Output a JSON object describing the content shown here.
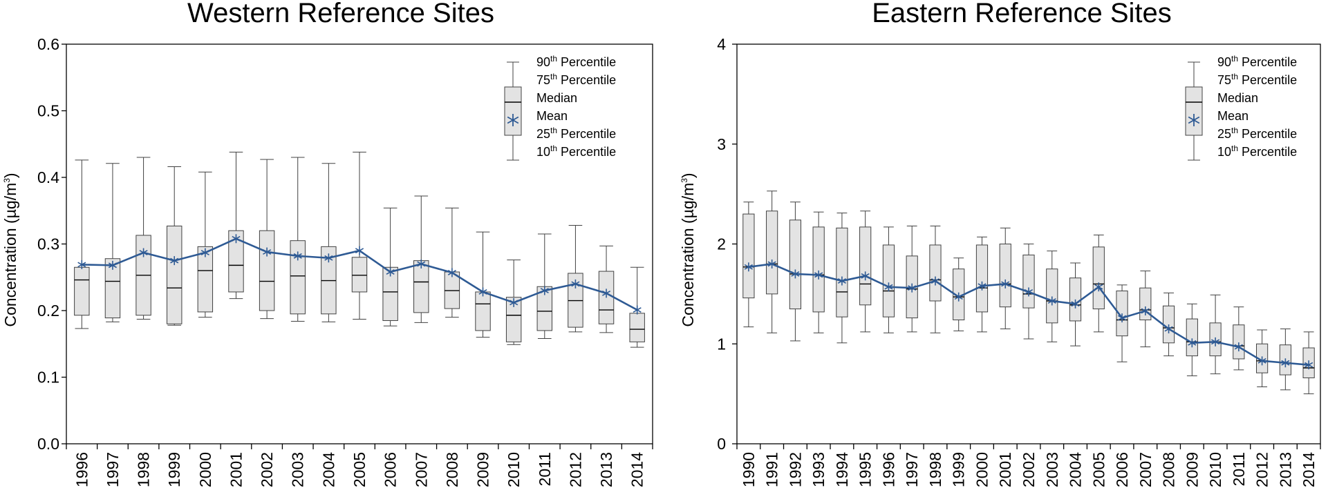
{
  "colors": {
    "mean_line": "#2E5A94",
    "box_fill": "#E3E3E3",
    "box_stroke": "#404040",
    "axis": "#000000"
  },
  "legend_entries": [
    {
      "num": "90",
      "sup": "th",
      "rest": " Percentile"
    },
    {
      "num": "75",
      "sup": "th",
      "rest": " Percentile"
    },
    {
      "num": "Median",
      "sup": "",
      "rest": ""
    },
    {
      "num": "Mean",
      "sup": "",
      "rest": ""
    },
    {
      "num": "25",
      "sup": "th",
      "rest": " Percentile"
    },
    {
      "num": "10",
      "sup": "th",
      "rest": " Percentile"
    }
  ],
  "chart_data": [
    {
      "type": "box",
      "title": "Western Reference Sites",
      "ylabel_main": "Concentration (µg/m",
      "ylabel_sup": "3",
      "ylabel_end": ")",
      "ylim": [
        0,
        0.6
      ],
      "yticks": [
        "0.0",
        "0.1",
        "0.2",
        "0.3",
        "0.4",
        "0.5",
        "0.6"
      ],
      "legend_position": "top-right",
      "categories": [
        "1996",
        "1997",
        "1998",
        "1999",
        "2000",
        "2001",
        "2002",
        "2003",
        "2004",
        "2005",
        "2006",
        "2007",
        "2008",
        "2009",
        "2010",
        "2011",
        "2012",
        "2013",
        "2014"
      ],
      "p10": [
        0.173,
        0.183,
        0.187,
        0.178,
        0.19,
        0.218,
        0.188,
        0.184,
        0.183,
        0.187,
        0.177,
        0.182,
        0.19,
        0.16,
        0.149,
        0.158,
        0.168,
        0.167,
        0.145
      ],
      "p25": [
        0.193,
        0.189,
        0.193,
        0.18,
        0.198,
        0.228,
        0.2,
        0.195,
        0.195,
        0.228,
        0.185,
        0.197,
        0.203,
        0.17,
        0.153,
        0.17,
        0.175,
        0.18,
        0.153
      ],
      "median": [
        0.246,
        0.244,
        0.253,
        0.234,
        0.26,
        0.268,
        0.244,
        0.252,
        0.245,
        0.253,
        0.228,
        0.243,
        0.23,
        0.21,
        0.193,
        0.199,
        0.215,
        0.201,
        0.172
      ],
      "mean": [
        0.269,
        0.268,
        0.287,
        0.275,
        0.287,
        0.308,
        0.288,
        0.282,
        0.279,
        0.29,
        0.258,
        0.27,
        0.257,
        0.228,
        0.212,
        0.23,
        0.24,
        0.226,
        0.201
      ],
      "p75": [
        0.265,
        0.278,
        0.313,
        0.327,
        0.296,
        0.32,
        0.32,
        0.305,
        0.296,
        0.28,
        0.265,
        0.275,
        0.258,
        0.228,
        0.22,
        0.236,
        0.256,
        0.259,
        0.196
      ],
      "p90": [
        0.426,
        0.421,
        0.43,
        0.416,
        0.408,
        0.438,
        0.427,
        0.43,
        0.421,
        0.438,
        0.354,
        0.372,
        0.354,
        0.318,
        0.276,
        0.315,
        0.328,
        0.297,
        0.265
      ]
    },
    {
      "type": "box",
      "title": "Eastern Reference Sites",
      "ylabel_main": "Concentration (µg/m",
      "ylabel_sup": "3",
      "ylabel_end": ")",
      "ylim": [
        0,
        4
      ],
      "yticks": [
        "0",
        "1",
        "2",
        "3",
        "4"
      ],
      "legend_position": "top-right",
      "categories": [
        "1990",
        "1991",
        "1992",
        "1993",
        "1994",
        "1995",
        "1996",
        "1997",
        "1998",
        "1999",
        "2000",
        "2001",
        "2002",
        "2003",
        "2004",
        "2005",
        "2006",
        "2007",
        "2008",
        "2009",
        "2010",
        "2011",
        "2012",
        "2013",
        "2014"
      ],
      "p10": [
        1.17,
        1.11,
        1.03,
        1.11,
        1.01,
        1.12,
        1.11,
        1.12,
        1.11,
        1.13,
        1.12,
        1.15,
        1.05,
        1.02,
        0.98,
        1.12,
        0.82,
        0.97,
        0.88,
        0.68,
        0.7,
        0.74,
        0.57,
        0.54,
        0.5
      ],
      "p25": [
        1.46,
        1.5,
        1.35,
        1.32,
        1.27,
        1.39,
        1.27,
        1.26,
        1.43,
        1.24,
        1.32,
        1.37,
        1.36,
        1.21,
        1.23,
        1.35,
        1.08,
        1.24,
        1.01,
        0.88,
        0.88,
        0.85,
        0.71,
        0.69,
        0.66
      ],
      "median": [
        1.77,
        1.8,
        1.7,
        1.69,
        1.52,
        1.6,
        1.53,
        1.55,
        1.64,
        1.47,
        1.56,
        1.6,
        1.5,
        1.43,
        1.39,
        1.6,
        1.24,
        1.34,
        1.16,
        1.02,
        1.02,
        0.98,
        0.83,
        0.81,
        0.76
      ],
      "mean": [
        1.77,
        1.8,
        1.7,
        1.69,
        1.63,
        1.68,
        1.57,
        1.56,
        1.63,
        1.47,
        1.58,
        1.6,
        1.52,
        1.43,
        1.4,
        1.57,
        1.26,
        1.33,
        1.15,
        1.01,
        1.02,
        0.97,
        0.83,
        0.81,
        0.79
      ],
      "p75": [
        2.3,
        2.33,
        2.24,
        2.17,
        2.16,
        2.17,
        1.99,
        1.88,
        1.99,
        1.75,
        1.99,
        2.0,
        1.89,
        1.75,
        1.66,
        1.97,
        1.53,
        1.56,
        1.38,
        1.25,
        1.21,
        1.19,
        1.0,
        0.99,
        0.96
      ],
      "p90": [
        2.42,
        2.53,
        2.42,
        2.32,
        2.31,
        2.33,
        2.17,
        2.18,
        2.18,
        1.86,
        2.07,
        2.16,
        2.0,
        1.93,
        1.81,
        2.09,
        1.59,
        1.73,
        1.51,
        1.4,
        1.49,
        1.37,
        1.14,
        1.15,
        1.12
      ]
    }
  ]
}
